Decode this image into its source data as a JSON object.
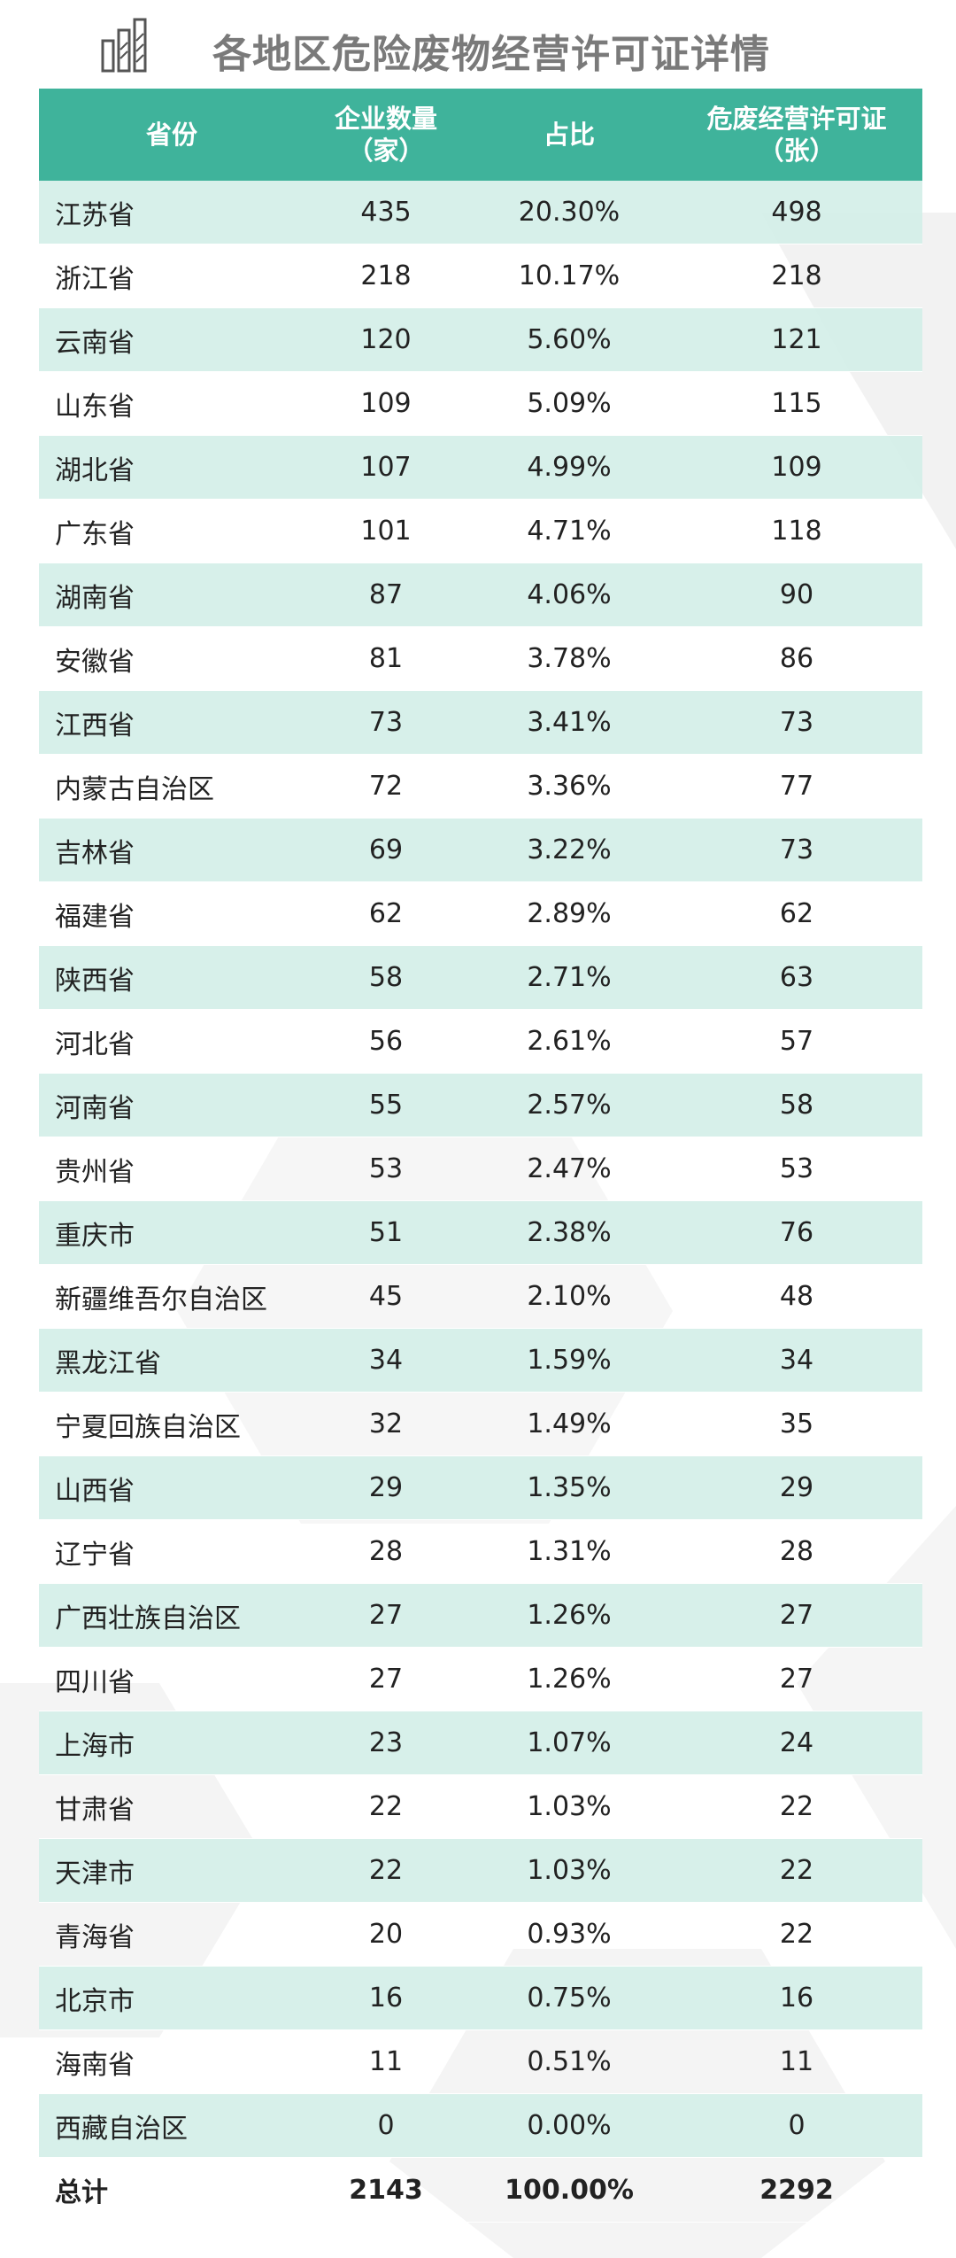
{
  "title": "各地区危险废物经营许可证详情",
  "colors": {
    "header_bg": "#3fb39b",
    "stripe": "#d4efe8",
    "title": "#7a7a7a"
  },
  "icons": {
    "logo": "bar-chart-logo-icon"
  },
  "chart_data": {
    "type": "table",
    "columns": [
      {
        "line1": "省份",
        "line2": ""
      },
      {
        "line1": "企业数量",
        "line2": "（家）"
      },
      {
        "line1": "占比",
        "line2": ""
      },
      {
        "line1": "危废经营许可证",
        "line2": "（张）"
      }
    ],
    "rows": [
      {
        "province": "江苏省",
        "companies": "435",
        "share": "20.30%",
        "licenses": "498"
      },
      {
        "province": "浙江省",
        "companies": "218",
        "share": "10.17%",
        "licenses": "218"
      },
      {
        "province": "云南省",
        "companies": "120",
        "share": "5.60%",
        "licenses": "121"
      },
      {
        "province": "山东省",
        "companies": "109",
        "share": "5.09%",
        "licenses": "115"
      },
      {
        "province": "湖北省",
        "companies": "107",
        "share": "4.99%",
        "licenses": "109"
      },
      {
        "province": "广东省",
        "companies": "101",
        "share": "4.71%",
        "licenses": "118"
      },
      {
        "province": "湖南省",
        "companies": "87",
        "share": "4.06%",
        "licenses": "90"
      },
      {
        "province": "安徽省",
        "companies": "81",
        "share": "3.78%",
        "licenses": "86"
      },
      {
        "province": "江西省",
        "companies": "73",
        "share": "3.41%",
        "licenses": "73"
      },
      {
        "province": "内蒙古自治区",
        "companies": "72",
        "share": "3.36%",
        "licenses": "77"
      },
      {
        "province": "吉林省",
        "companies": "69",
        "share": "3.22%",
        "licenses": "73"
      },
      {
        "province": "福建省",
        "companies": "62",
        "share": "2.89%",
        "licenses": "62"
      },
      {
        "province": "陕西省",
        "companies": "58",
        "share": "2.71%",
        "licenses": "63"
      },
      {
        "province": "河北省",
        "companies": "56",
        "share": "2.61%",
        "licenses": "57"
      },
      {
        "province": "河南省",
        "companies": "55",
        "share": "2.57%",
        "licenses": "58"
      },
      {
        "province": "贵州省",
        "companies": "53",
        "share": "2.47%",
        "licenses": "53"
      },
      {
        "province": "重庆市",
        "companies": "51",
        "share": "2.38%",
        "licenses": "76"
      },
      {
        "province": "新疆维吾尔自治区",
        "companies": "45",
        "share": "2.10%",
        "licenses": "48"
      },
      {
        "province": "黑龙江省",
        "companies": "34",
        "share": "1.59%",
        "licenses": "34"
      },
      {
        "province": "宁夏回族自治区",
        "companies": "32",
        "share": "1.49%",
        "licenses": "35"
      },
      {
        "province": "山西省",
        "companies": "29",
        "share": "1.35%",
        "licenses": "29"
      },
      {
        "province": "辽宁省",
        "companies": "28",
        "share": "1.31%",
        "licenses": "28"
      },
      {
        "province": "广西壮族自治区",
        "companies": "27",
        "share": "1.26%",
        "licenses": "27"
      },
      {
        "province": "四川省",
        "companies": "27",
        "share": "1.26%",
        "licenses": "27"
      },
      {
        "province": "上海市",
        "companies": "23",
        "share": "1.07%",
        "licenses": "24"
      },
      {
        "province": "甘肃省",
        "companies": "22",
        "share": "1.03%",
        "licenses": "22"
      },
      {
        "province": "天津市",
        "companies": "22",
        "share": "1.03%",
        "licenses": "22"
      },
      {
        "province": "青海省",
        "companies": "20",
        "share": "0.93%",
        "licenses": "22"
      },
      {
        "province": "北京市",
        "companies": "16",
        "share": "0.75%",
        "licenses": "16"
      },
      {
        "province": "海南省",
        "companies": "11",
        "share": "0.51%",
        "licenses": "11"
      },
      {
        "province": "西藏自治区",
        "companies": "0",
        "share": "0.00%",
        "licenses": "0"
      }
    ],
    "total": {
      "label": "总计",
      "companies": "2143",
      "share": "100.00%",
      "licenses": "2292"
    }
  }
}
